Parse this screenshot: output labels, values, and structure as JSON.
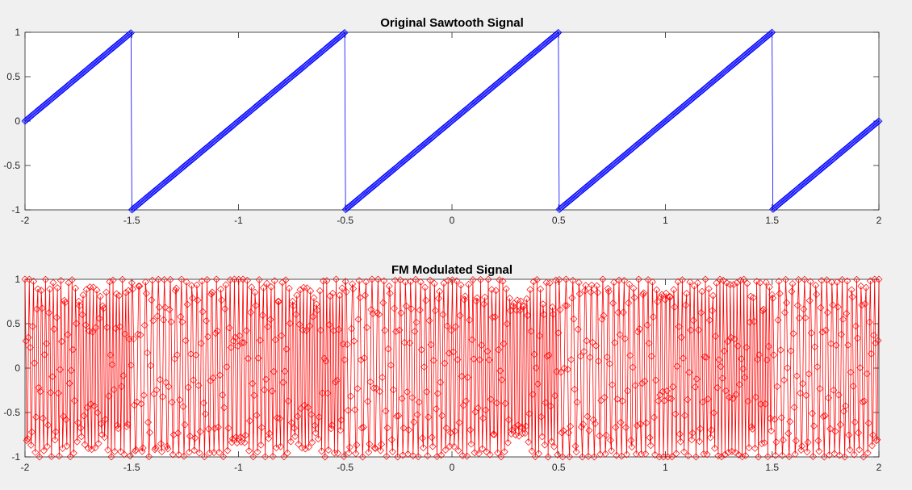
{
  "figure": {
    "background": "#f0f0f0"
  },
  "chart_data": [
    {
      "type": "line",
      "title": "Original Sawtooth Signal",
      "xlabel": "",
      "ylabel": "",
      "xlim": [
        -2,
        2
      ],
      "ylim": [
        -1,
        1
      ],
      "xticks": [
        -2,
        -1.5,
        -1,
        -0.5,
        0,
        0.5,
        1,
        1.5,
        2
      ],
      "xtick_labels": [
        "-2",
        "-1.5",
        "-1",
        "-0.5",
        "0",
        "0.5",
        "1",
        "1.5",
        "2"
      ],
      "yticks": [
        -1,
        -0.5,
        0,
        0.5,
        1
      ],
      "ytick_labels": [
        "-1",
        "-0.5",
        "0",
        "0.5",
        "1"
      ],
      "grid": false,
      "series": [
        {
          "color": "#0000ff",
          "marker": "diamond",
          "function": "sawtooth",
          "period": 1,
          "x_range": [
            -2,
            2
          ],
          "sample_count": 1000,
          "x_start": -2,
          "x_stop": 2,
          "drop_point_at": -1.5,
          "key_points": [
            [
              -2,
              0
            ],
            [
              -1.5,
              1
            ],
            [
              -1.5,
              -1
            ],
            [
              -0.5,
              1
            ],
            [
              -0.5,
              -1
            ],
            [
              0.5,
              1
            ],
            [
              0.5,
              -1
            ],
            [
              1.5,
              1
            ],
            [
              1.5,
              -1
            ],
            [
              2,
              0
            ]
          ]
        }
      ]
    },
    {
      "type": "line",
      "title": "FM Modulated Signal",
      "xlabel": "",
      "ylabel": "",
      "xlim": [
        -2,
        2
      ],
      "ylim": [
        -1,
        1
      ],
      "xticks": [
        -2,
        -1.5,
        -1,
        -0.5,
        0,
        0.5,
        1,
        1.5,
        2
      ],
      "xtick_labels": [
        "-2",
        "-1.5",
        "-1",
        "-0.5",
        "0",
        "0.5",
        "1",
        "1.5",
        "2"
      ],
      "yticks": [
        -1,
        -0.5,
        0,
        0.5,
        1
      ],
      "ytick_labels": [
        "-1",
        "-0.5",
        "0",
        "0.5",
        "1"
      ],
      "grid": false,
      "series": [
        {
          "color": "#ff0000",
          "marker": "diamond",
          "function": "cos(2*pi*fc*t + 2*pi*kf*integral(sawtooth))",
          "carrier_frequency": 50,
          "frequency_deviation": 20,
          "sample_count": 1000,
          "x_start": -2,
          "x_stop": 2
        }
      ]
    }
  ]
}
